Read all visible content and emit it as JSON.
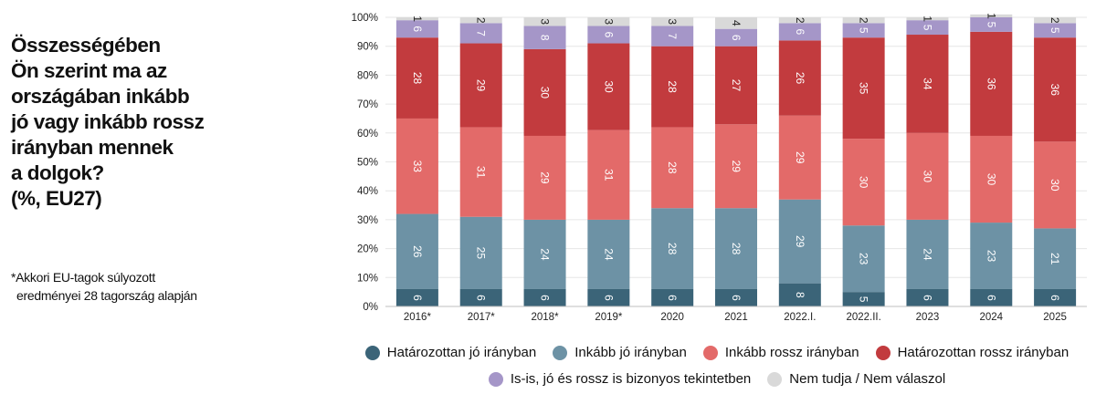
{
  "question": {
    "lines": [
      "Összességében",
      "Ön szerint ma az",
      "országában inkább",
      "jó vagy inkább rossz",
      "irányban mennek",
      "a dolgok?",
      "(%, EU27)"
    ]
  },
  "footnote": {
    "lines": [
      "*Akkori EU-tagok súlyozott",
      "eredményei 28 tagország alapján"
    ]
  },
  "chart_data": {
    "type": "bar",
    "stacked": true,
    "categories": [
      "2016*",
      "2017*",
      "2018*",
      "2019*",
      "2020",
      "2021",
      "2022.I.",
      "2022.II.",
      "2023",
      "2024",
      "2025"
    ],
    "y_ticks": [
      "0%",
      "10%",
      "20%",
      "30%",
      "40%",
      "50%",
      "60%",
      "70%",
      "80%",
      "90%",
      "100%"
    ],
    "ylim": [
      0,
      100
    ],
    "grid": true,
    "legend_position": "bottom",
    "series": [
      {
        "name": "Határozottan jó irányban",
        "color": "#3b6478",
        "values": [
          6,
          6,
          6,
          6,
          6,
          6,
          8,
          5,
          6,
          6,
          6
        ]
      },
      {
        "name": "Inkább jó irányban",
        "color": "#6d92a5",
        "values": [
          26,
          25,
          24,
          24,
          28,
          28,
          29,
          23,
          24,
          23,
          21
        ]
      },
      {
        "name": "Inkább rossz irányban",
        "color": "#e36a69",
        "values": [
          33,
          31,
          29,
          31,
          28,
          29,
          29,
          30,
          30,
          30,
          30
        ]
      },
      {
        "name": "Határozottan rossz irányban",
        "color": "#c23b3e",
        "values": [
          28,
          29,
          30,
          30,
          28,
          27,
          26,
          35,
          34,
          36,
          36
        ]
      },
      {
        "name": "Is-is, jó és rossz is bizonyos tekintetben",
        "color": "#a596c8",
        "values": [
          6,
          7,
          8,
          6,
          7,
          6,
          6,
          5,
          5,
          5,
          5
        ]
      },
      {
        "name": "Nem tudja / Nem válaszol",
        "color": "#d9d9d9",
        "values": [
          1,
          2,
          3,
          3,
          3,
          4,
          2,
          2,
          1,
          1,
          2
        ]
      }
    ]
  }
}
